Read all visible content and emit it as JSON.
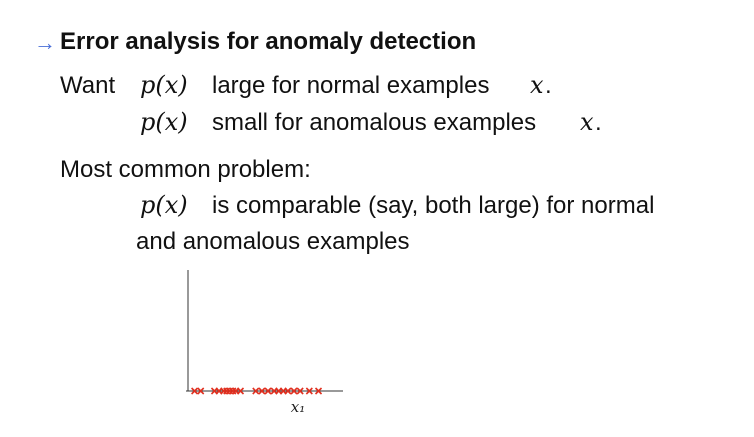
{
  "slide": {
    "arrow_glyph": "→",
    "title": "Error analysis for anomaly detection",
    "want_label": "Want",
    "px": "p(x)",
    "line1_text": "large for normal examples",
    "line2_text": "small for anomalous examples",
    "x_var": "x",
    "period": ".",
    "common_problem": "Most common problem:",
    "comparable_text": "is comparable (say, both large) for normal",
    "anomalous_line": "and anomalous examples"
  },
  "chart_data": {
    "type": "scatter",
    "xlabel": "x₁",
    "ylabel": "",
    "marker": "x",
    "color": "#e03020",
    "x": [
      0.3,
      0.7,
      1.6,
      1.9,
      2.2,
      2.4,
      2.6,
      2.8,
      3.0,
      3.3,
      4.3,
      4.7,
      5.1,
      5.5,
      5.8,
      6.1,
      6.4,
      6.8,
      7.2,
      7.8,
      8.4
    ],
    "y": [
      0,
      0,
      0,
      0,
      0,
      0,
      0,
      0,
      0,
      0,
      0,
      0,
      0,
      0,
      0,
      0,
      0,
      0,
      0,
      0,
      0
    ],
    "xlim": [
      0,
      10
    ],
    "grid": false
  }
}
